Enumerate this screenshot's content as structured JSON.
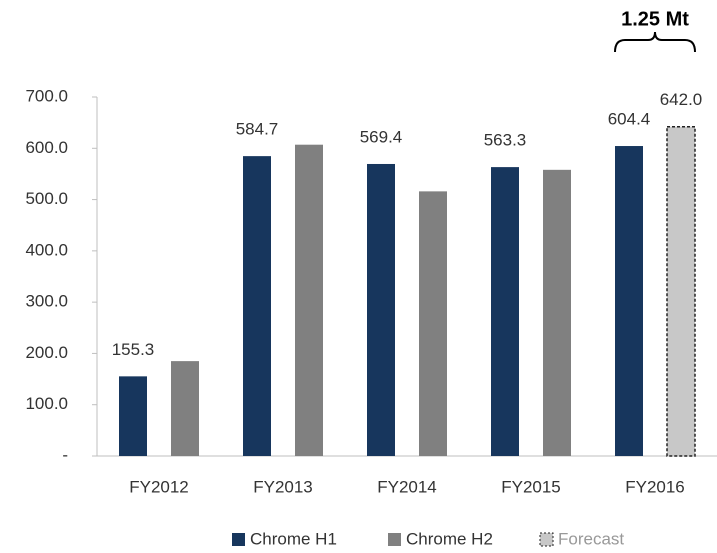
{
  "chart_data": {
    "type": "bar",
    "annotation": "1.25 Mt",
    "categories": [
      "FY2012",
      "FY2013",
      "FY2014",
      "FY2015",
      "FY2016"
    ],
    "series": [
      {
        "name": "Chrome H1",
        "color": "#17365d",
        "values": [
          155.3,
          584.7,
          569.4,
          563.3,
          604.4
        ],
        "value_labels": [
          "155.3",
          "584.7",
          "569.4",
          "563.3",
          "604.4"
        ]
      },
      {
        "name": "Chrome H2",
        "color": "#808080",
        "values": [
          185,
          607,
          516,
          558,
          null
        ]
      },
      {
        "name": "Forecast",
        "color": "#c8c8c8",
        "dashed": true,
        "values": [
          null,
          null,
          null,
          null,
          642
        ],
        "value_labels": [
          null,
          null,
          null,
          null,
          "642.0"
        ]
      }
    ],
    "ylim": [
      0,
      700
    ],
    "yticks": [
      {
        "value": 0,
        "label": "-"
      },
      {
        "value": 100,
        "label": "100.0"
      },
      {
        "value": 200,
        "label": "200.0"
      },
      {
        "value": 300,
        "label": "300.0"
      },
      {
        "value": 400,
        "label": "400.0"
      },
      {
        "value": 500,
        "label": "500.0"
      },
      {
        "value": 600,
        "label": "600.0"
      },
      {
        "value": 700,
        "label": "700.0"
      }
    ],
    "grid": false
  }
}
